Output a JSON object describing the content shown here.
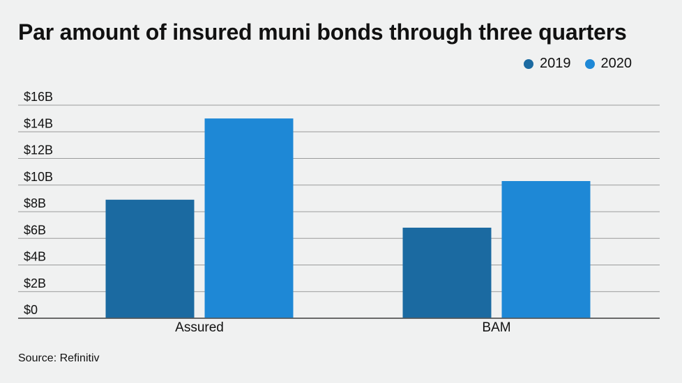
{
  "title": "Par amount of insured muni bonds through three quarters",
  "source": "Source: Refinitiv",
  "colors": {
    "s2019": "#1b6aa1",
    "s2020": "#1e88d6",
    "grid": "#9a9a9a",
    "axis": "#555555"
  },
  "chart_data": {
    "type": "bar",
    "categories": [
      "Assured",
      "BAM"
    ],
    "series": [
      {
        "name": "2019",
        "values": [
          8.9,
          6.8
        ]
      },
      {
        "name": "2020",
        "values": [
          15.0,
          10.3
        ]
      }
    ],
    "yticks": [
      "$0",
      "$2B",
      "$4B",
      "$6B",
      "$8B",
      "$10B",
      "$12B",
      "$14B",
      "$16B"
    ],
    "ylim": [
      0,
      16
    ],
    "ylabel": "",
    "xlabel": "",
    "legend_position": "top-right",
    "grid": true
  }
}
